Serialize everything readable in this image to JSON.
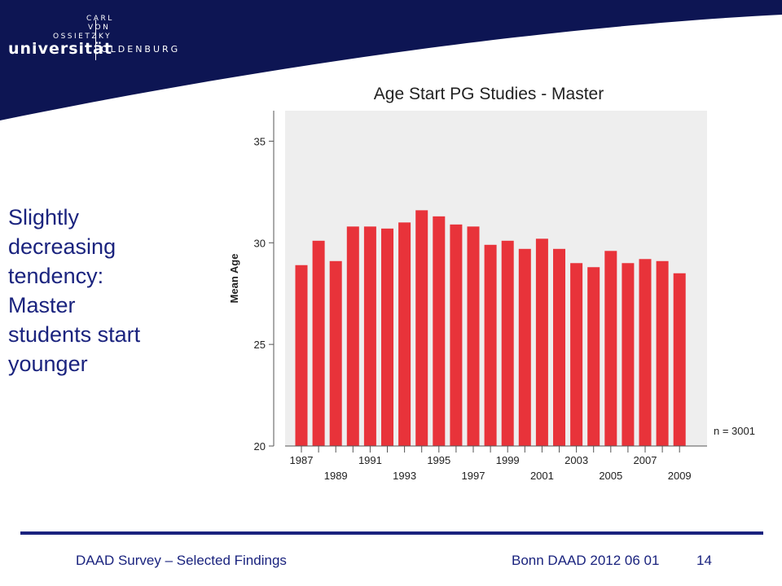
{
  "logo": {
    "line1": "CARL",
    "line2": "VON",
    "line3": "OSSIETZKY",
    "name": "universität",
    "city": "OLDENBURG"
  },
  "slide": {
    "side_text": [
      "Slightly",
      "decreasing",
      "tendency:",
      "Master",
      "students start",
      "younger"
    ]
  },
  "colors": {
    "header": "#0d1553",
    "text": "#1a237e",
    "bar": "#e8333a",
    "plot_bg": "#eeeeee"
  },
  "chart_data": {
    "type": "bar",
    "title": "Age Start PG Studies - Master",
    "xlabel": "",
    "ylabel": "Mean Age",
    "ylim": [
      20,
      36.5
    ],
    "yticks": [
      20,
      25,
      30,
      35
    ],
    "grid": false,
    "categories": [
      "1987",
      "1988",
      "1989",
      "1990",
      "1991",
      "1992",
      "1993",
      "1994",
      "1995",
      "1996",
      "1997",
      "1998",
      "1999",
      "2000",
      "2001",
      "2002",
      "2003",
      "2004",
      "2005",
      "2006",
      "2007",
      "2008",
      "2009"
    ],
    "values": [
      28.9,
      30.1,
      29.1,
      30.8,
      30.8,
      30.7,
      31.0,
      31.6,
      31.3,
      30.9,
      30.8,
      29.9,
      30.1,
      29.7,
      30.2,
      29.7,
      29.0,
      28.8,
      29.6,
      29.0,
      29.2,
      29.1,
      28.5
    ],
    "xtick_labels_top": [
      "1987",
      "1991",
      "1995",
      "1999",
      "2003",
      "2007"
    ],
    "xtick_labels_bottom": [
      "1989",
      "1993",
      "1997",
      "2001",
      "2005",
      "2009"
    ],
    "annotation": "n = 3001"
  },
  "footer": {
    "left": "DAAD Survey – Selected Findings",
    "right": "Bonn DAAD 2012 06 01",
    "page": "14"
  }
}
